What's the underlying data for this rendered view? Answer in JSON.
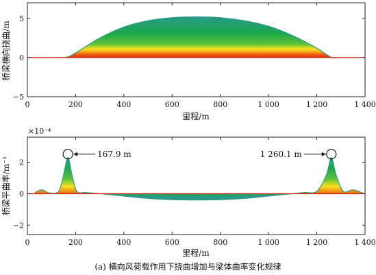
{
  "caption": "(a) 横向风荷载作用下挠曲增加与梁体曲率变化规律",
  "chart_data": [
    {
      "type": "area",
      "xlabel": "里程/m",
      "ylabel": "桥梁横向挠曲/m",
      "xlim": [
        0,
        1400
      ],
      "ylim": [
        -5,
        7
      ],
      "xticks": [
        0,
        200,
        400,
        600,
        800,
        1000,
        1200,
        1400
      ],
      "xtick_labels": [
        "0",
        "200",
        "400",
        "600",
        "800",
        "1 000",
        "1 200",
        "1 400"
      ],
      "yticks": [
        -5,
        0,
        5
      ],
      "ytick_labels": [
        "−5",
        "0",
        "5"
      ],
      "grid": false,
      "x": [
        0,
        100,
        160,
        200,
        300,
        400,
        500,
        600,
        700,
        800,
        900,
        1000,
        1100,
        1200,
        1260,
        1300,
        1400
      ],
      "y": [
        0,
        0,
        0.05,
        0.6,
        2.5,
        3.9,
        4.7,
        5.1,
        5.2,
        5.1,
        4.7,
        4.0,
        2.8,
        1.2,
        0.05,
        0,
        0
      ],
      "colors": [
        "#d42a10",
        "#f5e21c",
        "#1aa84a",
        "#2a9a8a"
      ]
    },
    {
      "type": "area",
      "xlabel": "里程/m",
      "ylabel": "桥梁平曲率/m⁻¹",
      "y_multiplier": "×10⁻⁴",
      "xlim": [
        0,
        1400
      ],
      "ylim": [
        -2.6,
        3.6
      ],
      "xticks": [
        0,
        200,
        400,
        600,
        800,
        1000,
        1200,
        1400
      ],
      "xtick_labels": [
        "0",
        "200",
        "400",
        "600",
        "800",
        "1 000",
        "1 200",
        "1 400"
      ],
      "yticks": [
        -2,
        0,
        2
      ],
      "ytick_labels": [
        "−2",
        "0",
        "2"
      ],
      "grid": false,
      "x": [
        30,
        60,
        90,
        130,
        150,
        167.9,
        185,
        205,
        240,
        300,
        400,
        500,
        600,
        700,
        800,
        900,
        1000,
        1100,
        1150,
        1200,
        1240,
        1260.1,
        1280,
        1310,
        1350,
        1390
      ],
      "y": [
        0.05,
        0.25,
        0.05,
        0.15,
        1.2,
        2.3,
        1.2,
        0.15,
        0.08,
        0,
        -0.15,
        -0.3,
        -0.38,
        -0.4,
        -0.38,
        -0.3,
        -0.15,
        0,
        0.08,
        0.15,
        1.2,
        2.3,
        1.2,
        0.15,
        0.25,
        0.05
      ],
      "annotations": [
        {
          "x": 167.9,
          "y": 2.3,
          "label": "167.9 m"
        },
        {
          "x": 1260.1,
          "y": 2.3,
          "label": "1 260.1 m"
        }
      ],
      "colors": [
        "#d42a10",
        "#f5e21c",
        "#1aa84a",
        "#2a9a8a"
      ]
    }
  ]
}
